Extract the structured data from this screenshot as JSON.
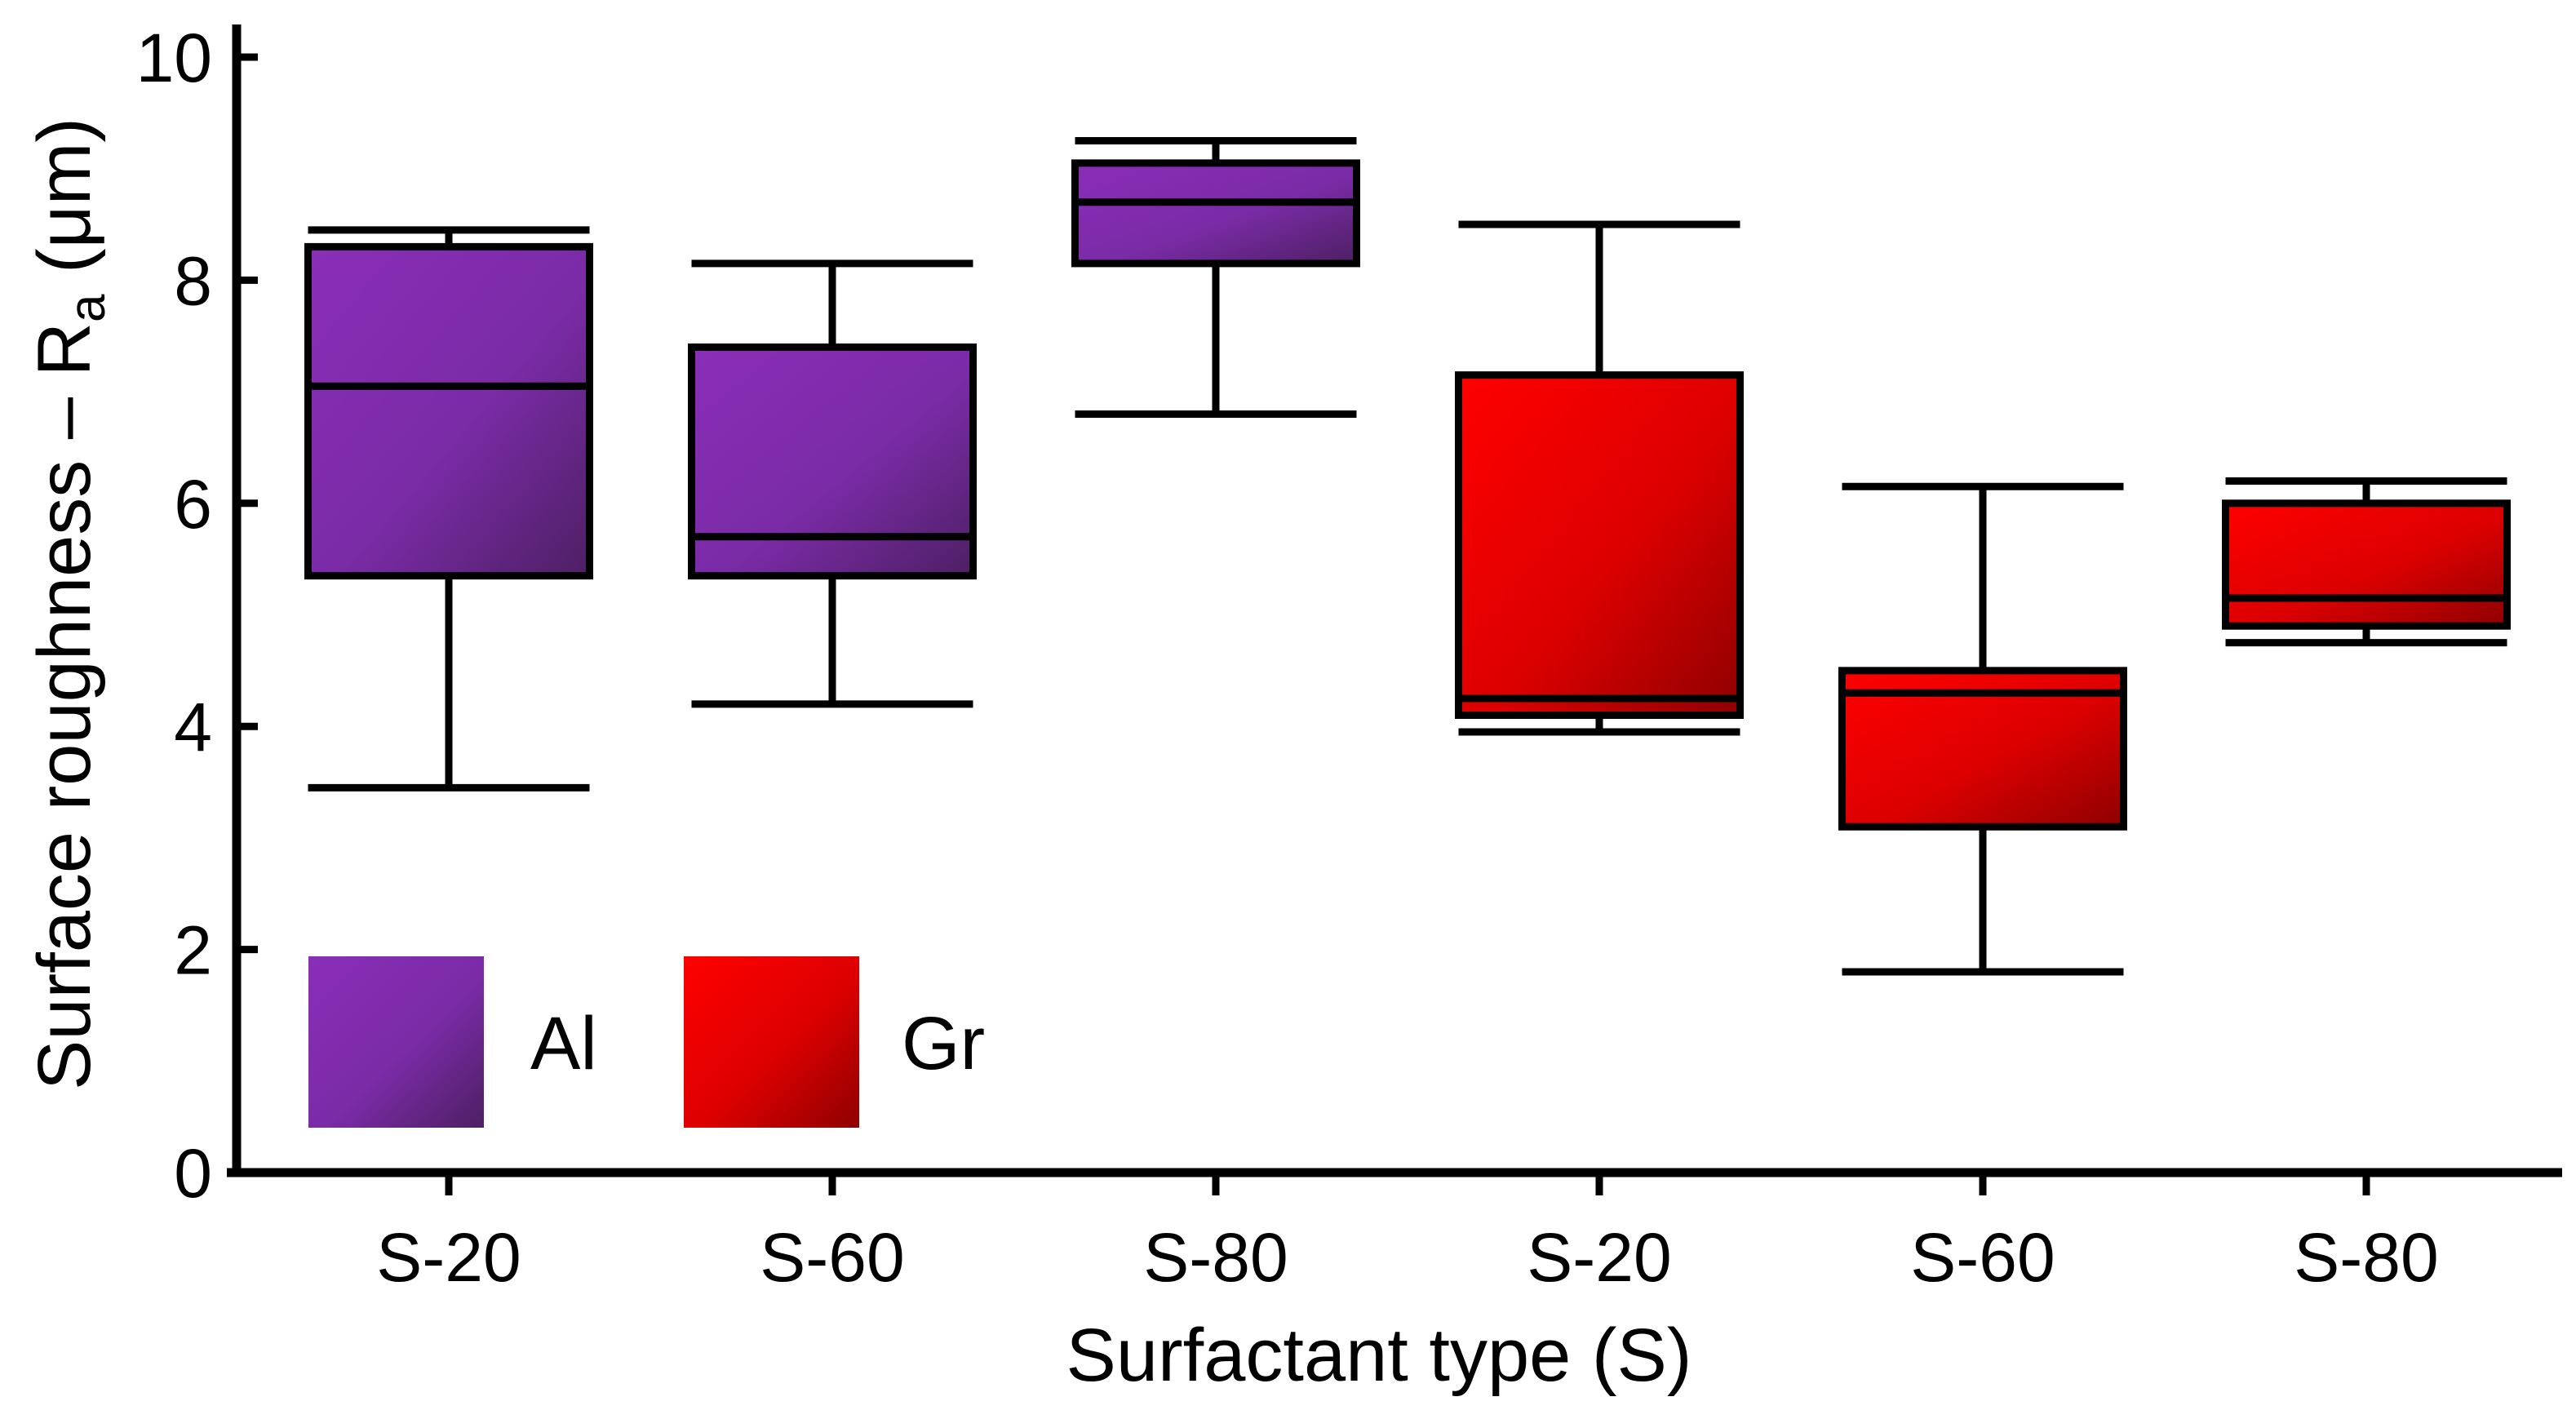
{
  "chart_data": {
    "type": "box",
    "title": "",
    "xlabel": "Surfactant type (S)",
    "ylabel": {
      "main": "Surface roughness – R",
      "subscript": "a",
      "unit": " (μm)"
    },
    "ylim": [
      0,
      10
    ],
    "yticks": [
      "0",
      "2",
      "4",
      "6",
      "8",
      "10"
    ],
    "grid": false,
    "legend": {
      "placement": "bottom-left",
      "entries": [
        {
          "name": "Al",
          "color": "#7b2ea0"
        },
        {
          "name": "Gr",
          "color": "#e00000"
        }
      ]
    },
    "categories": [
      "S-20",
      "S-60",
      "S-80",
      "S-20",
      "S-60",
      "S-80"
    ],
    "boxes": [
      {
        "category": "S-20",
        "series": "Al",
        "min": 3.45,
        "q1": 5.35,
        "median": 7.05,
        "q3": 8.3,
        "max": 8.45
      },
      {
        "category": "S-60",
        "series": "Al",
        "min": 4.2,
        "q1": 5.35,
        "median": 5.7,
        "q3": 7.4,
        "max": 8.15
      },
      {
        "category": "S-80",
        "series": "Al",
        "min": 6.8,
        "q1": 8.15,
        "median": 8.7,
        "q3": 9.05,
        "max": 9.25
      },
      {
        "category": "S-20",
        "series": "Gr",
        "min": 3.95,
        "q1": 4.1,
        "median": 4.25,
        "q3": 7.15,
        "max": 8.5
      },
      {
        "category": "S-60",
        "series": "Gr",
        "min": 1.8,
        "q1": 3.1,
        "median": 4.3,
        "q3": 4.5,
        "max": 6.15
      },
      {
        "category": "S-80",
        "series": "Gr",
        "min": 4.75,
        "q1": 4.9,
        "median": 5.15,
        "q3": 6.0,
        "max": 6.2
      }
    ]
  }
}
